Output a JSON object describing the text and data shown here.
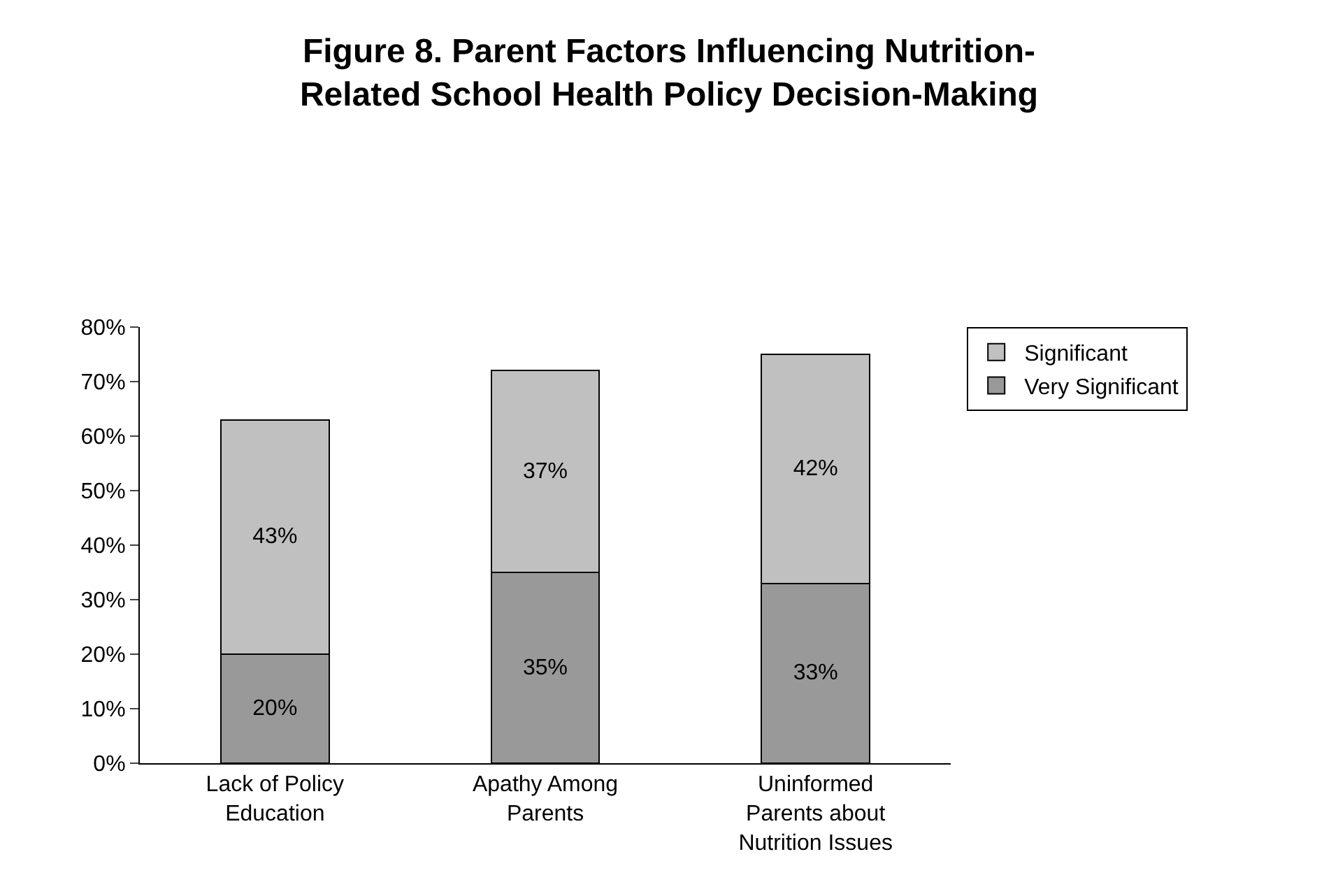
{
  "chart_data": {
    "type": "bar",
    "stacked": true,
    "title": "Figure 8. Parent Factors Influencing Nutrition-Related School Health Policy Decision-Making",
    "categories": [
      "Lack of Policy Education",
      "Apathy Among Parents",
      "Uninformed Parents about Nutrition Issues"
    ],
    "series": [
      {
        "name": "Very Significant",
        "color": "#999999",
        "values": [
          20,
          35,
          33
        ],
        "value_labels": [
          "20%",
          "35%",
          "33%"
        ]
      },
      {
        "name": "Significant",
        "color": "#c0c0c0",
        "values": [
          43,
          37,
          42
        ],
        "value_labels": [
          "43%",
          "37%",
          "42%"
        ]
      }
    ],
    "ylim": [
      0,
      80
    ],
    "yticks": [
      {
        "value": 0,
        "label": "0%"
      },
      {
        "value": 10,
        "label": "10%"
      },
      {
        "value": 20,
        "label": "20%"
      },
      {
        "value": 30,
        "label": "30%"
      },
      {
        "value": 40,
        "label": "40%"
      },
      {
        "value": 50,
        "label": "50%"
      },
      {
        "value": 60,
        "label": "60%"
      },
      {
        "value": 70,
        "label": "70%"
      },
      {
        "value": 80,
        "label": "80%"
      }
    ],
    "grid": false,
    "legend": "right"
  }
}
